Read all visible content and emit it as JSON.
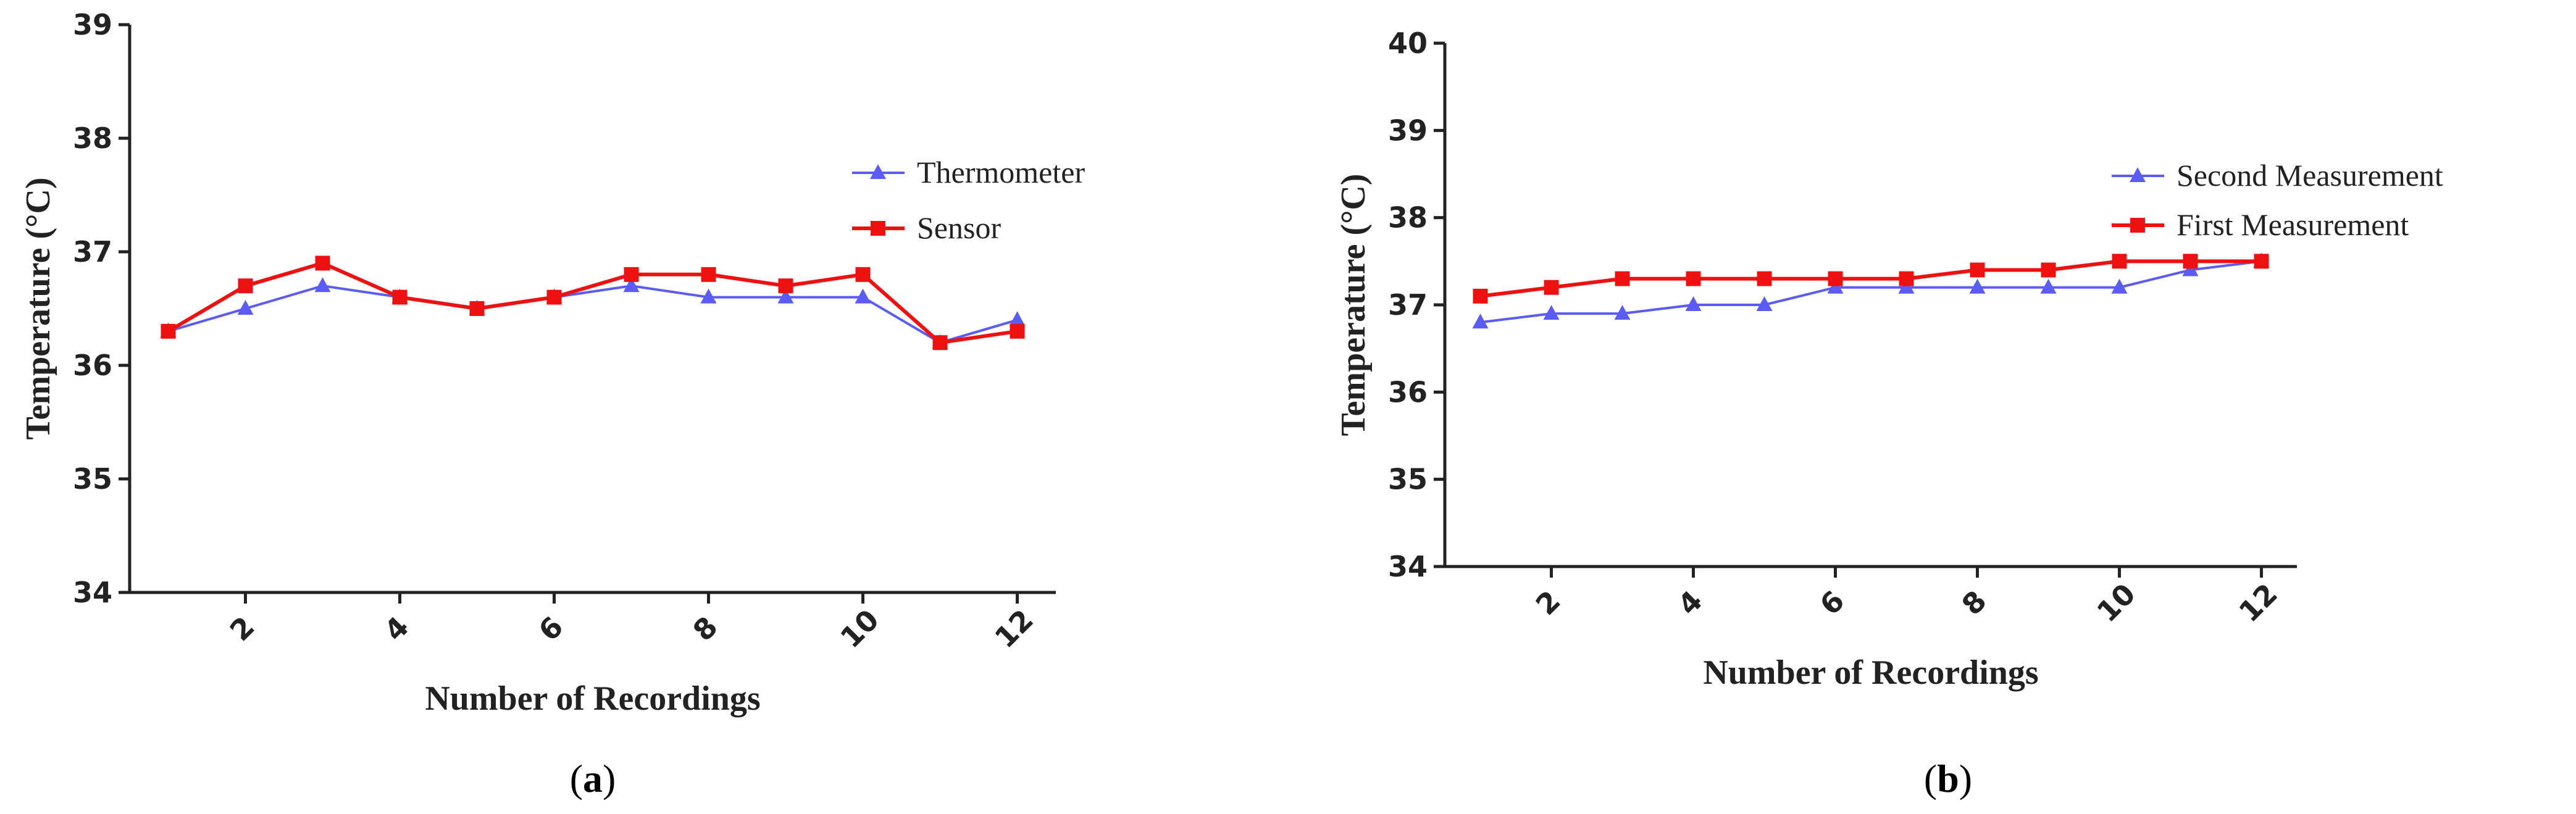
{
  "colors": {
    "blue": "#5B5BF5",
    "red": "#EE1111",
    "axis": "#222222"
  },
  "chart_data": [
    {
      "type": "line",
      "caption": "a",
      "xlabel": "Number of Recordings",
      "ylabel": "Temperature (°C)",
      "xlim": [
        0.5,
        12.5
      ],
      "ylim": [
        34,
        39
      ],
      "xticks": [
        2,
        4,
        6,
        8,
        10,
        12
      ],
      "yticks": [
        34,
        35,
        36,
        37,
        38,
        39
      ],
      "x": [
        1,
        2,
        3,
        4,
        5,
        6,
        7,
        8,
        9,
        10,
        11,
        12
      ],
      "legend_position": "right",
      "series": [
        {
          "name": "Thermometer",
          "marker": "triangle",
          "color": "#5B5BF5",
          "values": [
            36.3,
            36.5,
            36.7,
            36.6,
            36.5,
            36.6,
            36.7,
            36.6,
            36.6,
            36.6,
            36.2,
            36.4
          ]
        },
        {
          "name": "Sensor",
          "marker": "square",
          "color": "#EE1111",
          "values": [
            36.3,
            36.7,
            36.9,
            36.6,
            36.5,
            36.6,
            36.8,
            36.8,
            36.7,
            36.8,
            36.2,
            36.3
          ]
        }
      ]
    },
    {
      "type": "line",
      "caption": "b",
      "xlabel": "Number of Recordings",
      "ylabel": "Temperature (°C)",
      "xlim": [
        0.5,
        12.5
      ],
      "ylim": [
        34,
        40
      ],
      "xticks": [
        2,
        4,
        6,
        8,
        10,
        12
      ],
      "yticks": [
        34,
        35,
        36,
        37,
        38,
        39,
        40
      ],
      "x": [
        1,
        2,
        3,
        4,
        5,
        6,
        7,
        8,
        9,
        10,
        11,
        12
      ],
      "legend_position": "top-right",
      "series": [
        {
          "name": "Second Measurement",
          "marker": "triangle",
          "color": "#5B5BF5",
          "values": [
            36.8,
            36.9,
            36.9,
            37.0,
            37.0,
            37.2,
            37.2,
            37.2,
            37.2,
            37.2,
            37.4,
            37.5
          ]
        },
        {
          "name": "First Measurement",
          "marker": "square",
          "color": "#EE1111",
          "values": [
            37.1,
            37.2,
            37.3,
            37.3,
            37.3,
            37.3,
            37.3,
            37.4,
            37.4,
            37.5,
            37.5,
            37.5
          ]
        }
      ]
    }
  ]
}
